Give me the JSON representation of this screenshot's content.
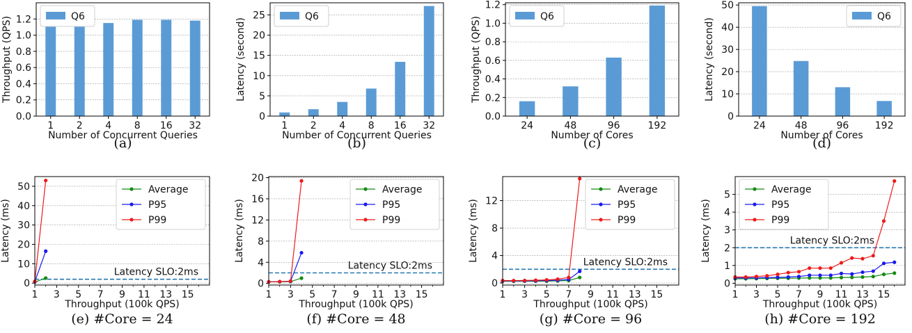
{
  "colors": {
    "bar": "#5b9bd5",
    "average": "#138a13",
    "p95": "#1a1aee",
    "p99": "#ee1a1a",
    "slo": "#2678b2",
    "grid": "#9a9a9a"
  },
  "chart_data": [
    {
      "type": "bar",
      "caption": "(a)",
      "categories": [
        "1",
        "2",
        "4",
        "8",
        "16",
        "32"
      ],
      "series": [
        {
          "name": "Q6",
          "values": [
            1.15,
            1.15,
            1.15,
            1.19,
            1.19,
            1.18
          ]
        }
      ],
      "xlabel": "Number of Concurrent Queries",
      "ylabel": "Throughput (QPS)",
      "ylim": [
        0,
        1.4
      ],
      "yticks": [
        "0.0",
        "0.2",
        "0.4",
        "0.6",
        "0.8",
        "1.0",
        "1.2"
      ],
      "legend": "top-left",
      "grid": true
    },
    {
      "type": "bar",
      "caption": "(b)",
      "categories": [
        "1",
        "2",
        "4",
        "8",
        "16",
        "32"
      ],
      "series": [
        {
          "name": "Q6",
          "values": [
            0.9,
            1.7,
            3.5,
            6.8,
            13.4,
            27.2
          ]
        }
      ],
      "xlabel": "Number of Concurrent Queries",
      "ylabel": "Latency (second)",
      "ylim": [
        0,
        28
      ],
      "yticks": [
        "0",
        "5",
        "10",
        "15",
        "20",
        "25"
      ],
      "legend": "top-left",
      "grid": true
    },
    {
      "type": "bar",
      "caption": "(c)",
      "categories": [
        "24",
        "48",
        "96",
        "192"
      ],
      "series": [
        {
          "name": "Q6",
          "values": [
            0.16,
            0.32,
            0.63,
            1.19
          ]
        }
      ],
      "xlabel": "Number of Cores",
      "ylabel": "Throughput (QPS)",
      "ylim": [
        0,
        1.22
      ],
      "yticks": [
        "0.0",
        "0.2",
        "0.4",
        "0.6",
        "0.8",
        "1.0",
        "1.2"
      ],
      "legend": "top-left",
      "grid": true
    },
    {
      "type": "bar",
      "caption": "(d)",
      "categories": [
        "24",
        "48",
        "96",
        "192"
      ],
      "series": [
        {
          "name": "Q6",
          "values": [
            49.5,
            24.8,
            13.0,
            6.8
          ]
        }
      ],
      "xlabel": "Number of Cores",
      "ylabel": "Latency (second)",
      "ylim": [
        0,
        51
      ],
      "yticks": [
        "0",
        "10",
        "20",
        "30",
        "40",
        "50"
      ],
      "legend": "top-right",
      "grid": true
    },
    {
      "type": "line",
      "caption": "(e) #Core = 24",
      "xlabel": "Throughput (100k QPS)",
      "ylabel": "Latency (ms)",
      "xlim": [
        1,
        17
      ],
      "xticks": [
        "1",
        "3",
        "5",
        "7",
        "9",
        "11",
        "13",
        "15"
      ],
      "ylim": [
        -1,
        55
      ],
      "yticks": [
        "0",
        "10",
        "20",
        "30",
        "40",
        "50"
      ],
      "slo": {
        "value": 2,
        "label": "Latency SLO:2ms"
      },
      "series": [
        {
          "name": "Average",
          "x": [
            1,
            2
          ],
          "y": [
            0.5,
            2.6
          ]
        },
        {
          "name": "P95",
          "x": [
            1,
            2
          ],
          "y": [
            0.7,
            16.5
          ]
        },
        {
          "name": "P99",
          "x": [
            1,
            2
          ],
          "y": [
            0.9,
            53
          ]
        }
      ],
      "legend": "top-right",
      "grid": true
    },
    {
      "type": "line",
      "caption": "(f) #Core = 48",
      "xlabel": "Throughput (100k QPS)",
      "ylabel": "Latency (ms)",
      "xlim": [
        1,
        17
      ],
      "xticks": [
        "1",
        "3",
        "5",
        "7",
        "9",
        "11",
        "13",
        "15"
      ],
      "ylim": [
        -0.3,
        20.2
      ],
      "yticks": [
        "0",
        "4",
        "8",
        "12",
        "16",
        "20"
      ],
      "slo": {
        "value": 2,
        "label": "Latency SLO:2ms"
      },
      "series": [
        {
          "name": "Average",
          "x": [
            1,
            2,
            3,
            4
          ],
          "y": [
            0.3,
            0.3,
            0.35,
            1.0
          ]
        },
        {
          "name": "P95",
          "x": [
            1,
            2,
            3,
            4
          ],
          "y": [
            0.3,
            0.35,
            0.4,
            5.8
          ]
        },
        {
          "name": "P99",
          "x": [
            1,
            2,
            3,
            4
          ],
          "y": [
            0.3,
            0.35,
            0.45,
            19.4
          ]
        }
      ],
      "legend": "top-right",
      "grid": true
    },
    {
      "type": "line",
      "caption": "(g) #Core = 96",
      "xlabel": "Throughput (100k QPS)",
      "ylabel": "Latency (ms)",
      "xlim": [
        1,
        17
      ],
      "xticks": [
        "1",
        "3",
        "5",
        "7",
        "9",
        "11",
        "13",
        "15"
      ],
      "ylim": [
        -0.3,
        15.5
      ],
      "yticks": [
        "0",
        "4",
        "8",
        "12"
      ],
      "slo": {
        "value": 2,
        "label": "Latency SLO:2ms"
      },
      "series": [
        {
          "name": "Average",
          "x": [
            1,
            2,
            3,
            4,
            5,
            6,
            7,
            8
          ],
          "y": [
            0.25,
            0.25,
            0.26,
            0.26,
            0.27,
            0.3,
            0.35,
            0.8
          ]
        },
        {
          "name": "P95",
          "x": [
            1,
            2,
            3,
            4,
            5,
            6,
            7,
            8
          ],
          "y": [
            0.3,
            0.3,
            0.3,
            0.32,
            0.35,
            0.4,
            0.5,
            1.7
          ]
        },
        {
          "name": "P99",
          "x": [
            1,
            2,
            3,
            4,
            5,
            6,
            7,
            8
          ],
          "y": [
            0.35,
            0.35,
            0.36,
            0.4,
            0.45,
            0.55,
            0.8,
            15.2
          ]
        }
      ],
      "legend": "top-right",
      "grid": true
    },
    {
      "type": "line",
      "caption": "(h) #Core = 192",
      "xlabel": "Throughput (100k QPS)",
      "ylabel": "Latency (ms)",
      "xlim": [
        1,
        17
      ],
      "xticks": [
        "1",
        "3",
        "5",
        "7",
        "9",
        "11",
        "13",
        "15"
      ],
      "ylim": [
        -0.1,
        6.0
      ],
      "yticks": [
        "0",
        "1",
        "2",
        "3",
        "4",
        "5"
      ],
      "slo": {
        "value": 2,
        "label": "Latency SLO:2ms"
      },
      "series": [
        {
          "name": "Average",
          "x": [
            1,
            2,
            3,
            4,
            5,
            6,
            7,
            8,
            9,
            10,
            11,
            12,
            13,
            14,
            15,
            16
          ],
          "y": [
            0.25,
            0.25,
            0.26,
            0.27,
            0.28,
            0.28,
            0.29,
            0.3,
            0.3,
            0.3,
            0.32,
            0.33,
            0.35,
            0.38,
            0.5,
            0.57
          ]
        },
        {
          "name": "P95",
          "x": [
            1,
            2,
            3,
            4,
            5,
            6,
            7,
            8,
            9,
            10,
            11,
            12,
            13,
            14,
            15,
            16
          ],
          "y": [
            0.3,
            0.3,
            0.3,
            0.32,
            0.33,
            0.35,
            0.38,
            0.45,
            0.45,
            0.45,
            0.55,
            0.52,
            0.62,
            0.68,
            1.12,
            1.18
          ]
        },
        {
          "name": "P99",
          "x": [
            1,
            2,
            3,
            4,
            5,
            6,
            7,
            8,
            9,
            10,
            11,
            12,
            13,
            14,
            15,
            16
          ],
          "y": [
            0.35,
            0.35,
            0.38,
            0.42,
            0.5,
            0.6,
            0.65,
            0.85,
            0.85,
            0.85,
            1.15,
            1.42,
            1.38,
            1.55,
            3.5,
            5.75
          ]
        }
      ],
      "legend": "top-left",
      "grid": true
    }
  ]
}
